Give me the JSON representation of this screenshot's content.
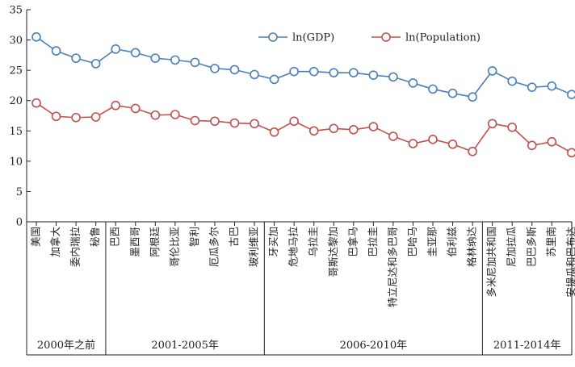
{
  "chart_data": {
    "type": "line",
    "categories": [
      "美国",
      "加拿大",
      "委内瑞拉",
      "秘鲁",
      "巴西",
      "墨西哥",
      "阿根廷",
      "哥伦比亚",
      "智利",
      "厄瓜多尔",
      "古巴",
      "玻利维亚",
      "牙买加",
      "危地马拉",
      "乌拉圭",
      "哥斯达黎加",
      "巴拿马",
      "巴拉圭",
      "特立尼达和多巴哥",
      "巴哈马",
      "圭亚那",
      "伯利兹",
      "格林纳达",
      "多米尼加共和国",
      "尼加拉瓜",
      "巴巴多斯",
      "苏里南",
      "安提瓜和巴布达"
    ],
    "groups": [
      {
        "label": "2000年之前",
        "start": 0,
        "end": 3
      },
      {
        "label": "2001-2005年",
        "start": 4,
        "end": 11
      },
      {
        "label": "2006-2010年",
        "start": 12,
        "end": 22
      },
      {
        "label": "2011-2014年",
        "start": 23,
        "end": 27
      }
    ],
    "series": [
      {
        "name": "ln(GDP)",
        "color": "#4a7ebb",
        "values": [
          30.5,
          28.2,
          27.0,
          26.1,
          28.5,
          27.9,
          27.0,
          26.7,
          26.3,
          25.3,
          25.1,
          24.3,
          23.5,
          24.8,
          24.8,
          24.6,
          24.6,
          24.2,
          23.9,
          22.9,
          21.9,
          21.2,
          20.6,
          24.9,
          23.2,
          22.2,
          22.4,
          21.0
        ]
      },
      {
        "name": "ln(Population)",
        "color": "#c0504d",
        "values": [
          19.6,
          17.4,
          17.2,
          17.3,
          19.2,
          18.7,
          17.6,
          17.7,
          16.7,
          16.6,
          16.3,
          16.2,
          14.8,
          16.6,
          15.0,
          15.4,
          15.2,
          15.7,
          14.1,
          12.9,
          13.6,
          12.8,
          11.6,
          16.2,
          15.6,
          12.6,
          13.2,
          11.4
        ]
      }
    ],
    "yticks": [
      0,
      5,
      10,
      15,
      20,
      25,
      30,
      35
    ],
    "ylim": [
      0,
      35
    ],
    "legend_position": "top-right",
    "grid": false
  }
}
